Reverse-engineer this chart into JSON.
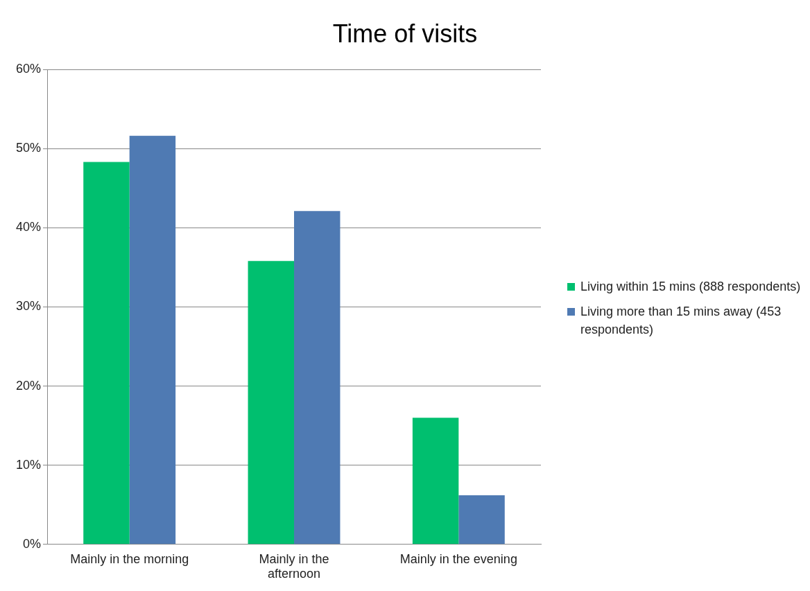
{
  "chart_data": {
    "type": "bar",
    "title": "Time of visits",
    "categories": [
      "Mainly in the morning",
      "Mainly in the afternoon",
      "Mainly in the evening"
    ],
    "series": [
      {
        "name": "Living within 15 mins (888 respondents)",
        "color": "#00bf6f",
        "values": [
          48.3,
          35.8,
          16.0
        ]
      },
      {
        "name": "Living more than 15 mins away (453 respondents)",
        "color": "#4f7ab3",
        "values": [
          51.6,
          42.1,
          6.2
        ]
      }
    ],
    "ylim": [
      0,
      60
    ],
    "yticks": [
      {
        "value": 0,
        "label": "0%"
      },
      {
        "value": 10,
        "label": "10%"
      },
      {
        "value": 20,
        "label": "20%"
      },
      {
        "value": 30,
        "label": "30%"
      },
      {
        "value": 40,
        "label": "40%"
      },
      {
        "value": 50,
        "label": "50%"
      },
      {
        "value": 60,
        "label": "60%"
      }
    ],
    "grid": "y",
    "legend": "right"
  }
}
